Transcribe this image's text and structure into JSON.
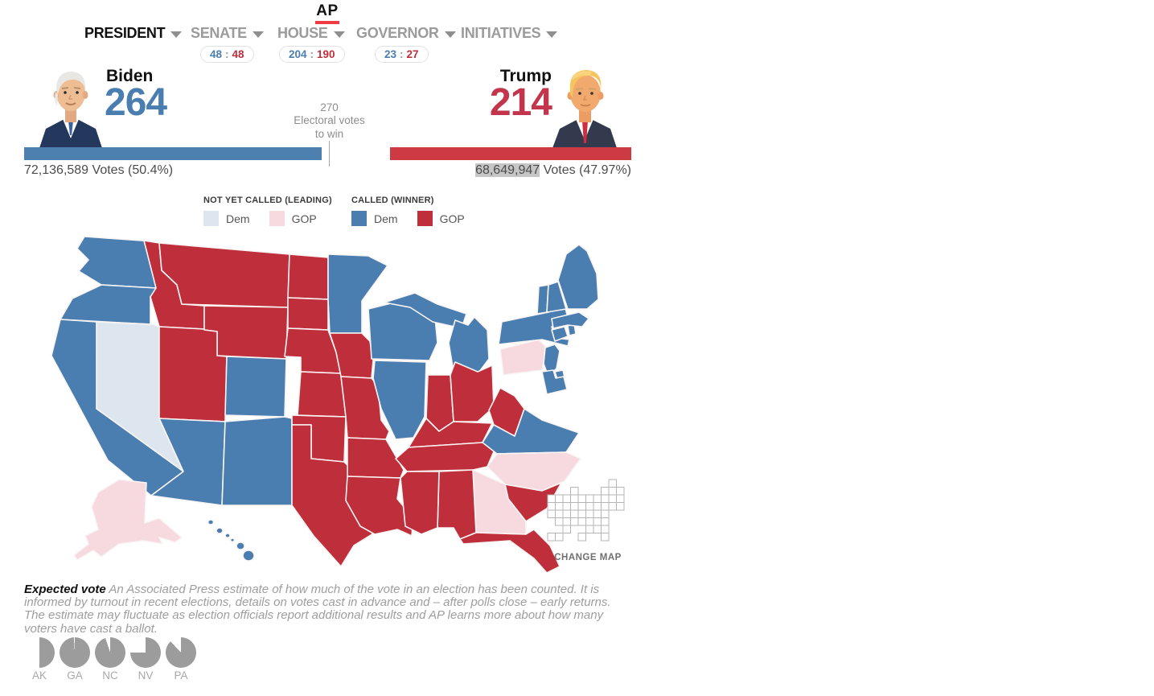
{
  "colors": {
    "dem": "#4a7eb0",
    "gop": "#bf2f3b",
    "gop_bright": "#c2354c",
    "dem_leading": "#dde6ee",
    "gop_leading": "#f6dae0",
    "bar_dem": "#4d80af",
    "bar_gop": "#ce3a44",
    "pie_gray": "#9c9c9c",
    "ap_red": "#ee3a43",
    "highlight": "#c6c6c6"
  },
  "header": {
    "logo": "AP"
  },
  "nav": {
    "pill_separator": ":",
    "items": [
      {
        "label": "PRESIDENT",
        "active": true
      },
      {
        "label": "SENATE",
        "pill": {
          "dem": "48",
          "gop": "48"
        }
      },
      {
        "label": "HOUSE",
        "pill": {
          "dem": "204",
          "gop": "190"
        }
      },
      {
        "label": "GOVERNOR",
        "pill": {
          "dem": "23",
          "gop": "27"
        }
      },
      {
        "label": "INITIATIVES"
      }
    ]
  },
  "candidates": {
    "votes_word": "Votes",
    "dem": {
      "name": "Biden",
      "electoral_votes": "264",
      "popular_votes": "72,136,589",
      "pct": "(50.4%)"
    },
    "gop": {
      "name": "Trump",
      "electoral_votes": "214",
      "popular_votes": "68,649,947",
      "pct": "(47.97%)"
    }
  },
  "electoral": {
    "dem_ev": 264,
    "gop_ev": 214,
    "total_ev": 538,
    "to_win": 270,
    "marker": {
      "value": "270",
      "line2": "Electoral votes",
      "line3": "to win"
    }
  },
  "legend": {
    "groups": [
      {
        "title": "NOT YET CALLED (LEADING)",
        "items": [
          {
            "label": "Dem",
            "color_key": "dem_leading"
          },
          {
            "label": "GOP",
            "color_key": "gop_leading"
          }
        ]
      },
      {
        "title": "CALLED (WINNER)",
        "items": [
          {
            "label": "Dem",
            "color_key": "dem"
          },
          {
            "label": "GOP",
            "color_key": "gop"
          }
        ]
      }
    ]
  },
  "map": {
    "called_dem": [
      "WA",
      "OR",
      "CA",
      "HI",
      "CO",
      "NM",
      "AZ",
      "MN",
      "WI",
      "MI",
      "MI_UP",
      "IL",
      "VA",
      "NY",
      "VT",
      "NH",
      "ME",
      "MA",
      "RI",
      "CT",
      "NJ",
      "DE",
      "MD"
    ],
    "called_gop": [
      "ID",
      "MT",
      "WY",
      "UT",
      "ND",
      "SD",
      "NE",
      "KS",
      "OK",
      "TX",
      "IA",
      "MO",
      "AR",
      "LA",
      "MS",
      "AL",
      "TN",
      "KY",
      "IN",
      "OH",
      "WV",
      "SC",
      "FL"
    ],
    "leading_dem": [
      "NV"
    ],
    "leading_gop": [
      "AK",
      "PA",
      "NC",
      "GA"
    ]
  },
  "change_map": {
    "label": "CHANGE MAP"
  },
  "expected_vote": {
    "lead_label": "Expected vote",
    "description": "An Associated Press estimate of how much of the vote in an election has been counted. It is informed by turnout in recent elections, details on votes cast in advance and – after polls close – early returns. The estimate may fluctuate as election officials report additional results and AP learns more about how many voters have cast a ballot.",
    "pies": [
      {
        "state": "AK",
        "counted_pct": 50
      },
      {
        "state": "GA",
        "counted_pct": 99
      },
      {
        "state": "NC",
        "counted_pct": 95
      },
      {
        "state": "NV",
        "counted_pct": 75
      },
      {
        "state": "PA",
        "counted_pct": 88
      }
    ]
  }
}
